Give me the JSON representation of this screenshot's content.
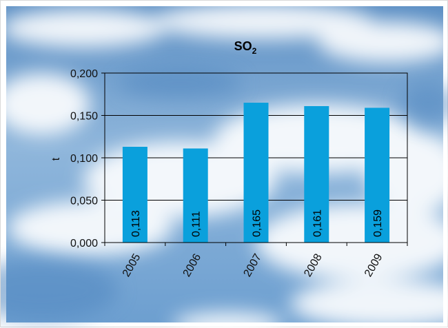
{
  "chart_data": {
    "type": "bar",
    "title": "SO",
    "title_subscript": "2",
    "xlabel": "",
    "ylabel": "t",
    "categories": [
      "2005",
      "2006",
      "2007",
      "2008",
      "2009"
    ],
    "values": [
      0.113,
      0.111,
      0.165,
      0.161,
      0.159
    ],
    "data_labels": [
      "0,113",
      "0,111",
      "0,165",
      "0,161",
      "0,159"
    ],
    "ylim": [
      0,
      0.2
    ],
    "yticks": [
      0,
      0.05,
      0.1,
      0.15,
      0.2
    ],
    "ytick_labels": [
      "0,000",
      "0,050",
      "0,100",
      "0,150",
      "0,200"
    ],
    "grid": true,
    "legend": "none",
    "bar_color": "#0aa0dc",
    "background": "sky with clouds"
  }
}
